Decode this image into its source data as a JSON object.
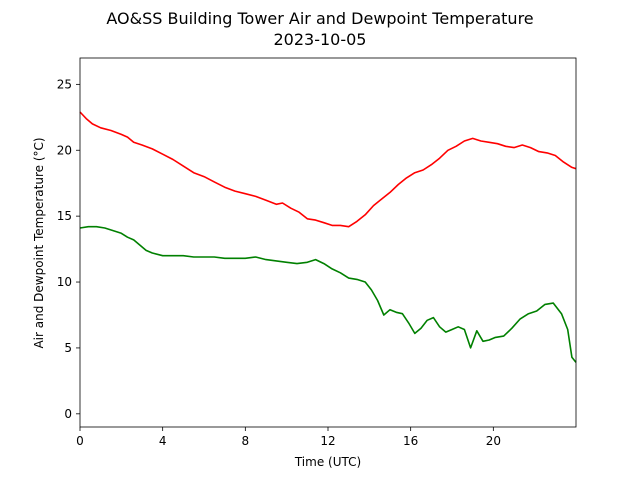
{
  "chart_data": {
    "type": "line",
    "title": "AO&SS Building Tower Air and Dewpoint Temperature",
    "subtitle": "2023-10-05",
    "xlabel": "Time (UTC)",
    "ylabel": "Air and Dewpoint Temperature (°C)",
    "xlim": [
      0,
      24
    ],
    "ylim": [
      -1,
      27
    ],
    "x_ticks": [
      0,
      4,
      8,
      12,
      16,
      20
    ],
    "y_ticks": [
      0,
      5,
      10,
      15,
      20,
      25
    ],
    "grid": false,
    "legend": "none",
    "series": [
      {
        "color": "#ff0000",
        "x": [
          0,
          0.3,
          0.6,
          1,
          1.5,
          2,
          2.3,
          2.6,
          3,
          3.5,
          4,
          4.5,
          5,
          5.5,
          6,
          6.5,
          7,
          7.5,
          8,
          8.5,
          9,
          9.5,
          9.8,
          10.2,
          10.6,
          11,
          11.4,
          11.8,
          12.2,
          12.6,
          13,
          13.4,
          13.8,
          14.2,
          14.6,
          15,
          15.4,
          15.8,
          16.2,
          16.6,
          17,
          17.4,
          17.8,
          18.2,
          18.6,
          19,
          19.4,
          19.8,
          20.2,
          20.6,
          21,
          21.4,
          21.8,
          22.2,
          22.6,
          23,
          23.4,
          23.8,
          24
        ],
        "y": [
          22.9,
          22.4,
          22.0,
          21.7,
          21.5,
          21.2,
          21.0,
          20.6,
          20.4,
          20.1,
          19.7,
          19.3,
          18.8,
          18.3,
          18.0,
          17.6,
          17.2,
          16.9,
          16.7,
          16.5,
          16.2,
          15.9,
          16.0,
          15.6,
          15.3,
          14.8,
          14.7,
          14.5,
          14.3,
          14.3,
          14.2,
          14.6,
          15.1,
          15.8,
          16.3,
          16.8,
          17.4,
          17.9,
          18.3,
          18.5,
          18.9,
          19.4,
          20.0,
          20.3,
          20.7,
          20.9,
          20.7,
          20.6,
          20.5,
          20.3,
          20.2,
          20.4,
          20.2,
          19.9,
          19.8,
          19.6,
          19.1,
          18.7,
          18.6
        ]
      },
      {
        "color": "#008000",
        "x": [
          0,
          0.4,
          0.8,
          1.2,
          1.6,
          2,
          2.3,
          2.6,
          2.9,
          3.2,
          3.5,
          4,
          4.5,
          5,
          5.5,
          6,
          6.5,
          7,
          7.5,
          8,
          8.5,
          9,
          9.5,
          10,
          10.5,
          11,
          11.4,
          11.8,
          12.2,
          12.6,
          13,
          13.4,
          13.8,
          14.1,
          14.4,
          14.7,
          15,
          15.3,
          15.6,
          15.9,
          16.2,
          16.5,
          16.8,
          17.1,
          17.4,
          17.7,
          18,
          18.3,
          18.6,
          18.9,
          19.2,
          19.5,
          19.8,
          20.1,
          20.5,
          20.9,
          21.3,
          21.7,
          22.1,
          22.5,
          22.9,
          23.3,
          23.6,
          23.8,
          24
        ],
        "y": [
          14.1,
          14.2,
          14.2,
          14.1,
          13.9,
          13.7,
          13.4,
          13.2,
          12.8,
          12.4,
          12.2,
          12.0,
          12.0,
          12.0,
          11.9,
          11.9,
          11.9,
          11.8,
          11.8,
          11.8,
          11.9,
          11.7,
          11.6,
          11.5,
          11.4,
          11.5,
          11.7,
          11.4,
          11.0,
          10.7,
          10.3,
          10.2,
          10.0,
          9.4,
          8.6,
          7.5,
          7.9,
          7.7,
          7.6,
          6.9,
          6.1,
          6.5,
          7.1,
          7.3,
          6.6,
          6.2,
          6.4,
          6.6,
          6.4,
          5.0,
          6.3,
          5.5,
          5.6,
          5.8,
          5.9,
          6.5,
          7.2,
          7.6,
          7.8,
          8.3,
          8.4,
          7.6,
          6.4,
          4.3,
          3.9
        ]
      }
    ]
  }
}
